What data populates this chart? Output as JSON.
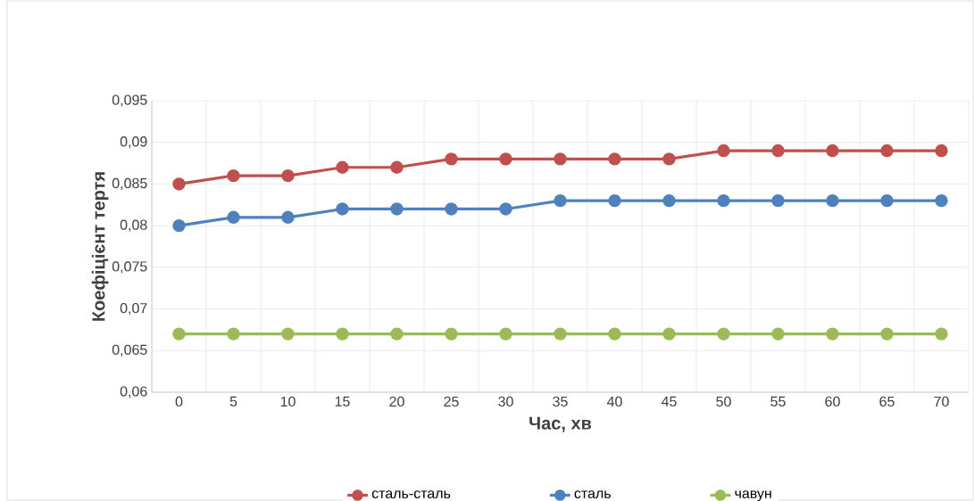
{
  "chart_data": {
    "type": "line",
    "xlabel": "Час, хв",
    "ylabel": "Коефіцієнт тертя",
    "categories": [
      "0",
      "5",
      "10",
      "15",
      "20",
      "25",
      "30",
      "35",
      "40",
      "45",
      "50",
      "55",
      "60",
      "65",
      "70"
    ],
    "series": [
      {
        "name": "сталь-сталь",
        "color": "#c0504d",
        "values": [
          0.085,
          0.086,
          0.086,
          0.087,
          0.087,
          0.088,
          0.088,
          0.088,
          0.088,
          0.088,
          0.089,
          0.089,
          0.089,
          0.089,
          0.089
        ]
      },
      {
        "name": "сталь",
        "color": "#4f81bd",
        "values": [
          0.08,
          0.081,
          0.081,
          0.082,
          0.082,
          0.082,
          0.082,
          0.083,
          0.083,
          0.083,
          0.083,
          0.083,
          0.083,
          0.083,
          0.083
        ]
      },
      {
        "name": "чавун",
        "color": "#9bbb59",
        "values": [
          0.067,
          0.067,
          0.067,
          0.067,
          0.067,
          0.067,
          0.067,
          0.067,
          0.067,
          0.067,
          0.067,
          0.067,
          0.067,
          0.067,
          0.067
        ]
      }
    ],
    "ylim": [
      0.06,
      0.095
    ],
    "yticks": [
      {
        "value": 0.06,
        "label": "0,06"
      },
      {
        "value": 0.065,
        "label": "0,065"
      },
      {
        "value": 0.07,
        "label": "0,07"
      },
      {
        "value": 0.075,
        "label": "0,075"
      },
      {
        "value": 0.08,
        "label": "0,08"
      },
      {
        "value": 0.085,
        "label": "0,085"
      },
      {
        "value": 0.09,
        "label": "0,09"
      },
      {
        "value": 0.095,
        "label": "0,095"
      }
    ],
    "grid": true,
    "legend": "bottom",
    "marker": "circle",
    "line_style": "solid"
  }
}
